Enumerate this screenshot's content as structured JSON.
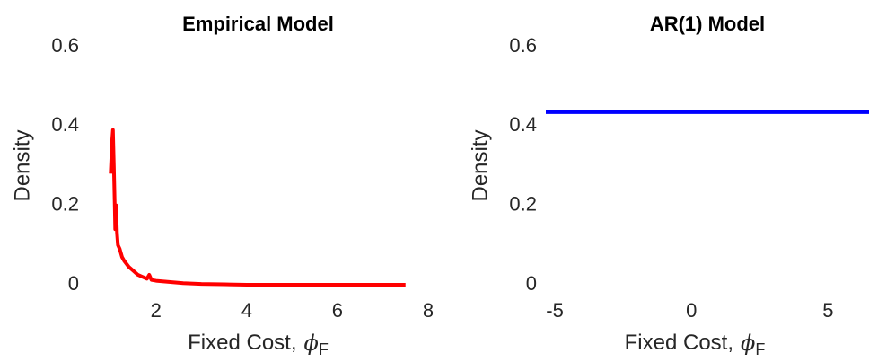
{
  "chart_data": [
    {
      "type": "line",
      "title": "Empirical Model",
      "ylabel": "Density",
      "xlabel": {
        "text": "Fixed Cost,",
        "symbol": "ϕ",
        "subscript": "F"
      },
      "x": [
        1.0,
        1.03,
        1.05,
        1.07,
        1.09,
        1.1,
        1.12,
        1.14,
        1.16,
        1.2,
        1.25,
        1.3,
        1.4,
        1.5,
        1.6,
        1.7,
        1.8,
        1.85,
        1.9,
        2.0,
        2.2,
        2.4,
        2.6,
        3.0,
        3.5,
        4,
        5,
        6,
        7,
        7.5
      ],
      "series": [
        {
          "color": "#ff0000",
          "values": [
            0.28,
            0.36,
            0.39,
            0.3,
            0.2,
            0.14,
            0.2,
            0.13,
            0.1,
            0.09,
            0.07,
            0.06,
            0.045,
            0.035,
            0.025,
            0.02,
            0.015,
            0.025,
            0.012,
            0.01,
            0.008,
            0.006,
            0.004,
            0.002,
            0.001,
            0,
            0,
            0,
            0,
            0
          ]
        }
      ],
      "xlim": [
        0.5,
        8
      ],
      "xticks": [
        2,
        4,
        6,
        8
      ],
      "ylim": [
        0,
        0.6
      ],
      "yticks": [
        0,
        0.2,
        0.4,
        0.6
      ]
    },
    {
      "type": "line",
      "title": "AR(1) Model",
      "ylabel": "Density",
      "xlabel": {
        "text": "Fixed Cost,",
        "symbol": "ϕ",
        "subscript": "F"
      },
      "x": [
        -5.33,
        6.5
      ],
      "series": [
        {
          "color": "#0000ff",
          "values": [
            0.435,
            0.435
          ]
        }
      ],
      "xlim": [
        -5.33,
        6.5
      ],
      "xticks": [
        -5,
        0,
        5
      ],
      "ylim": [
        0,
        0.6
      ],
      "yticks": [
        0,
        0.2,
        0.4,
        0.6
      ]
    }
  ]
}
